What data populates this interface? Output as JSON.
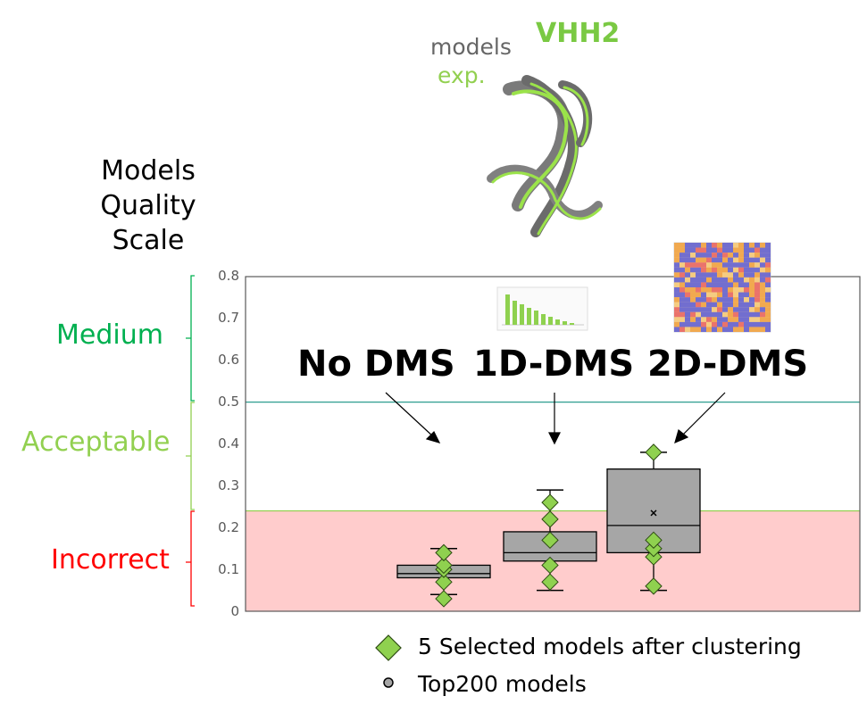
{
  "structure": {
    "title": "VHH2",
    "models_label": "models",
    "exp_label": "exp.",
    "title_color": "#7ac943",
    "models_color": "#666666",
    "exp_color": "#92d050"
  },
  "scale": {
    "title_lines": [
      "Models",
      "Quality",
      "Scale"
    ],
    "zones": [
      {
        "label": "Medium",
        "color": "#00b050",
        "from": 0.5,
        "to": 0.8
      },
      {
        "label": "Acceptable",
        "color": "#92d050",
        "from": 0.24,
        "to": 0.5
      },
      {
        "label": "Incorrect",
        "color": "#ff0000",
        "from": 0,
        "to": 0.24
      }
    ]
  },
  "colors": {
    "incorrect_band": "#ffcccc",
    "box_fill": "#a6a6a6",
    "diamond_fill": "#8fd14f",
    "medium_line": "#2e9e8f",
    "acceptable_line": "#92d050"
  },
  "legend": {
    "selected_label": "5 Selected models after clustering",
    "top200_label": "Top200 models",
    "selected_icon": "green-diamond",
    "top200_icon": "gray-dot"
  },
  "chart_data": {
    "type": "box",
    "ylim": [
      0,
      0.8
    ],
    "yticks": [
      "0",
      "0.1",
      "0.2",
      "0.3",
      "0.4",
      "0.5",
      "0.6",
      "0.7",
      "0.8"
    ],
    "thresholds": [
      0.24,
      0.5
    ],
    "categories": [
      "No DMS",
      "1D-DMS",
      "2D-DMS"
    ],
    "category_icons": [
      "none",
      "bar-chart-thumbnail",
      "contact-map-thumbnail"
    ],
    "boxes": [
      {
        "name": "No DMS",
        "min": 0.04,
        "q1": 0.08,
        "median": 0.09,
        "q3": 0.11,
        "max": 0.15
      },
      {
        "name": "1D-DMS",
        "min": 0.05,
        "q1": 0.12,
        "median": 0.14,
        "q3": 0.19,
        "max": 0.29
      },
      {
        "name": "2D-DMS",
        "min": 0.05,
        "q1": 0.14,
        "median": 0.205,
        "q3": 0.34,
        "max": 0.38,
        "mean": 0.235
      }
    ],
    "selected_models": [
      [
        0.03,
        0.07,
        0.1,
        0.11,
        0.14
      ],
      [
        0.07,
        0.11,
        0.17,
        0.22,
        0.26
      ],
      [
        0.06,
        0.13,
        0.15,
        0.17,
        0.38
      ]
    ]
  }
}
